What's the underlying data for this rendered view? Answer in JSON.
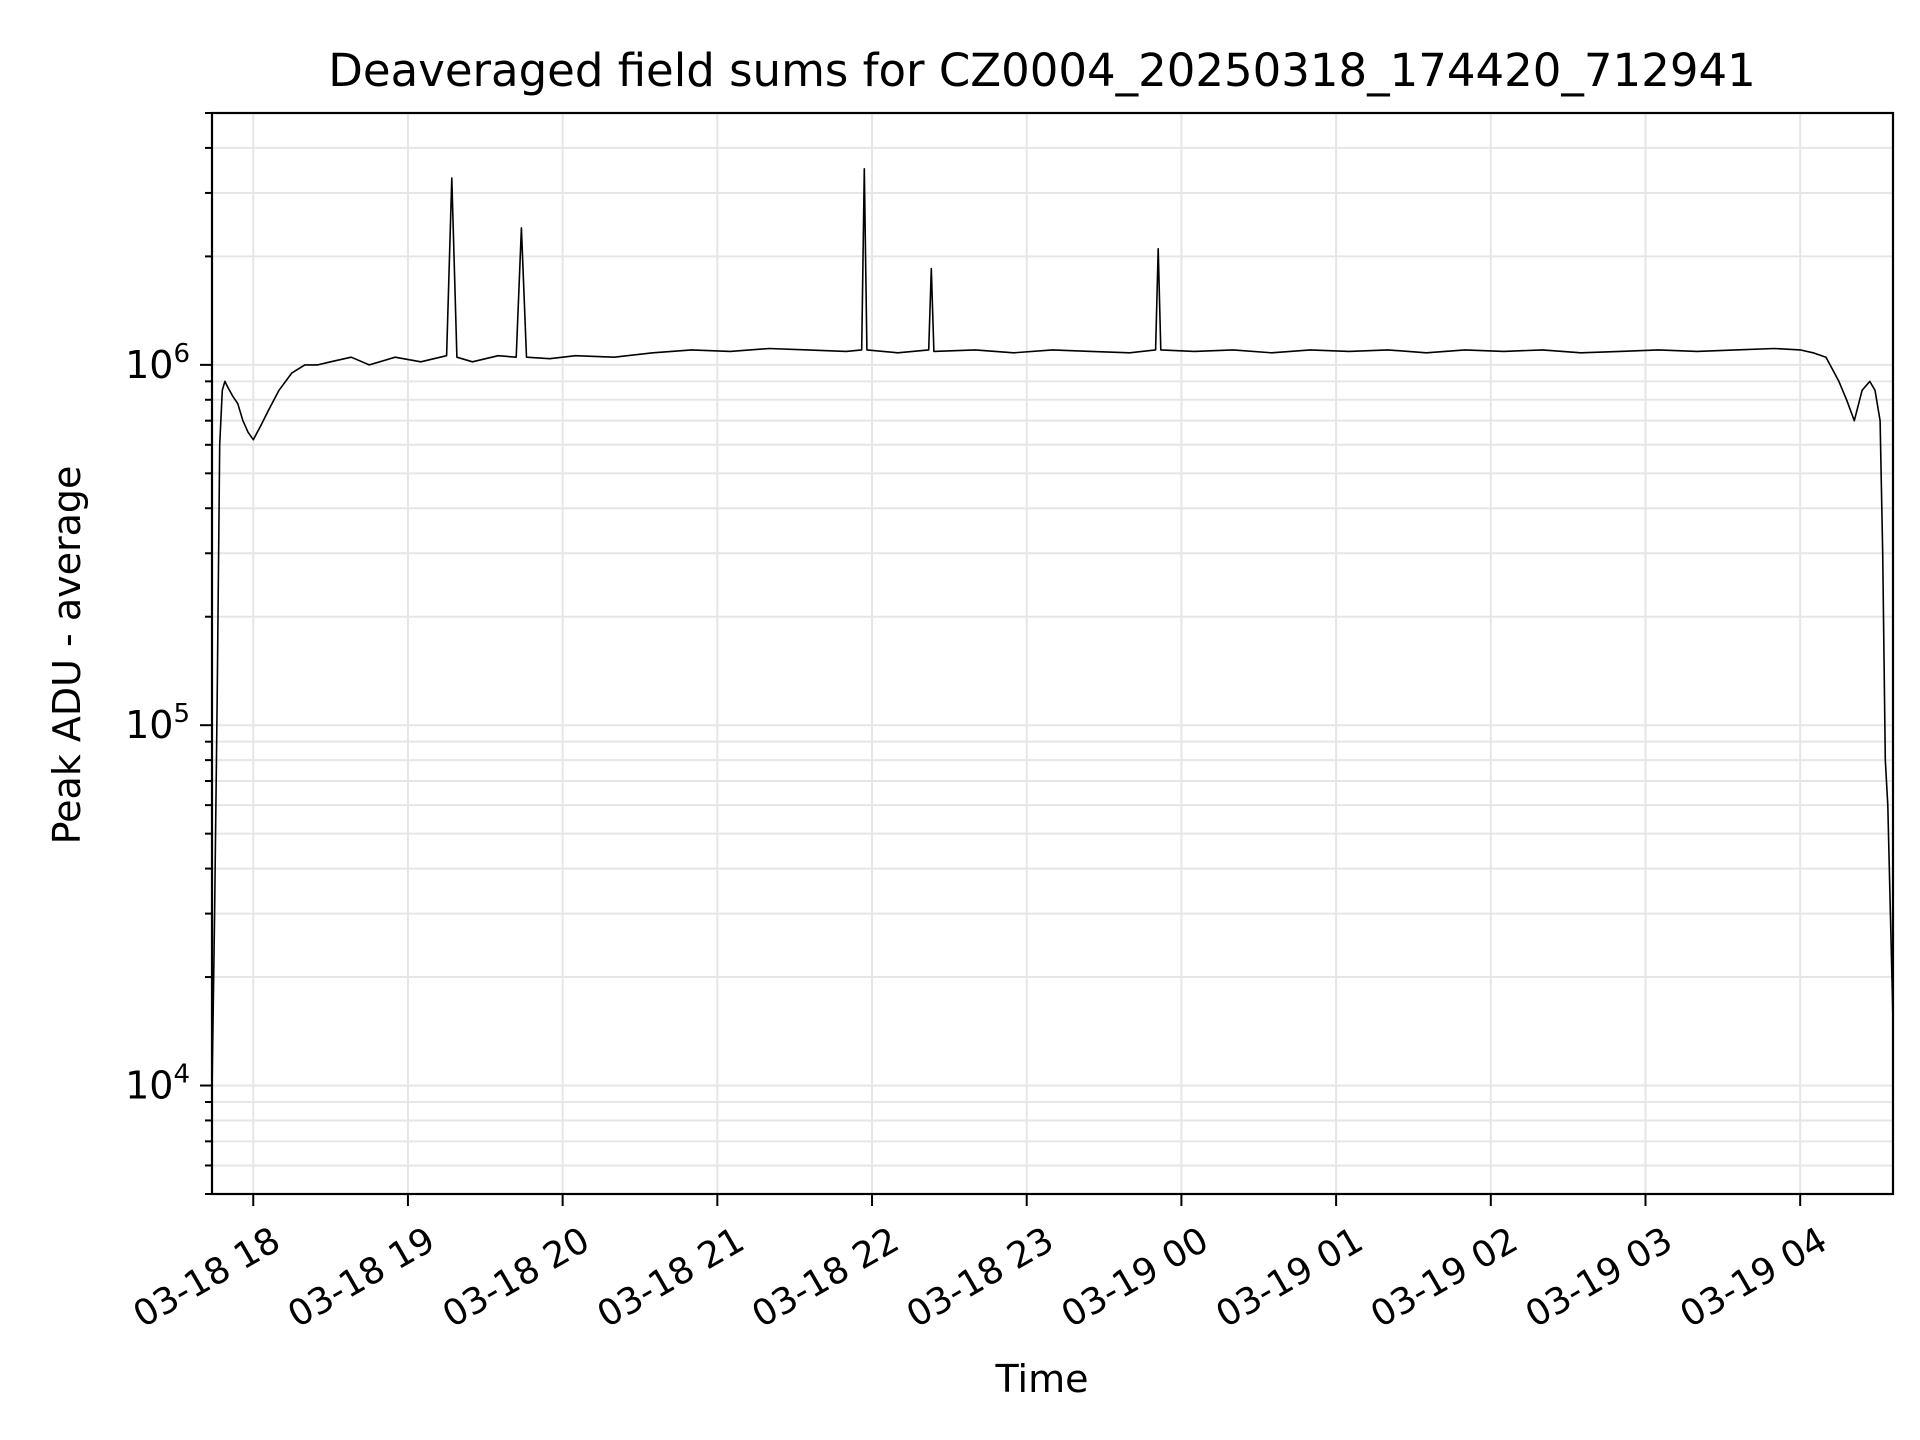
{
  "chart_data": {
    "type": "line",
    "title": "Deaveraged field sums for CZ0004_20250318_174420_712941",
    "xlabel": "Time",
    "ylabel": "Peak ADU - average",
    "x_range": [
      "03-18 17:44",
      "03-19 04:36"
    ],
    "yscale": "log",
    "ylim": [
      5000,
      5000000
    ],
    "grid": true,
    "line_color": "#000000",
    "grid_color": "#e6e6e6",
    "x_ticks": [
      {
        "time": "03-18 18:00",
        "label": "03-18 18"
      },
      {
        "time": "03-18 19:00",
        "label": "03-18 19"
      },
      {
        "time": "03-18 20:00",
        "label": "03-18 20"
      },
      {
        "time": "03-18 21:00",
        "label": "03-18 21"
      },
      {
        "time": "03-18 22:00",
        "label": "03-18 22"
      },
      {
        "time": "03-18 23:00",
        "label": "03-18 23"
      },
      {
        "time": "03-19 00:00",
        "label": "03-19 00"
      },
      {
        "time": "03-19 01:00",
        "label": "03-19 01"
      },
      {
        "time": "03-19 02:00",
        "label": "03-19 02"
      },
      {
        "time": "03-19 03:00",
        "label": "03-19 03"
      },
      {
        "time": "03-19 04:00",
        "label": "03-19 04"
      }
    ],
    "y_ticks": [
      {
        "value": 10000,
        "base": "10",
        "exp": "4"
      },
      {
        "value": 100000,
        "base": "10",
        "exp": "5"
      },
      {
        "value": 1000000,
        "base": "10",
        "exp": "6"
      }
    ],
    "series": [
      {
        "x": [
          "03-18 17:44",
          "03-18 17:45",
          "03-18 17:46",
          "03-18 17:47",
          "03-18 17:48",
          "03-18 17:49",
          "03-18 17:50",
          "03-18 17:52",
          "03-18 17:54",
          "03-18 17:56",
          "03-18 17:58",
          "03-18 18:00",
          "03-18 18:03",
          "03-18 18:06",
          "03-18 18:10",
          "03-18 18:15",
          "03-18 18:20",
          "03-18 18:25",
          "03-18 18:30",
          "03-18 18:38",
          "03-18 18:45",
          "03-18 18:55",
          "03-18 19:05",
          "03-18 19:15",
          "03-18 19:17",
          "03-18 19:19",
          "03-18 19:25",
          "03-18 19:35",
          "03-18 19:42",
          "03-18 19:44",
          "03-18 19:46",
          "03-18 19:55",
          "03-18 20:05",
          "03-18 20:20",
          "03-18 20:35",
          "03-18 20:50",
          "03-18 21:05",
          "03-18 21:20",
          "03-18 21:35",
          "03-18 21:50",
          "03-18 21:56",
          "03-18 21:57",
          "03-18 21:58",
          "03-18 22:10",
          "03-18 22:22",
          "03-18 22:23",
          "03-18 22:24",
          "03-18 22:40",
          "03-18 22:55",
          "03-18 23:10",
          "03-18 23:25",
          "03-18 23:40",
          "03-18 23:50",
          "03-18 23:51",
          "03-18 23:52",
          "03-19 00:05",
          "03-19 00:20",
          "03-19 00:35",
          "03-19 00:50",
          "03-19 01:05",
          "03-19 01:20",
          "03-19 01:35",
          "03-19 01:50",
          "03-19 02:05",
          "03-19 02:20",
          "03-19 02:35",
          "03-19 02:50",
          "03-19 03:05",
          "03-19 03:20",
          "03-19 03:35",
          "03-19 03:50",
          "03-19 04:00",
          "03-19 04:05",
          "03-19 04:10",
          "03-19 04:15",
          "03-19 04:18",
          "03-19 04:21",
          "03-19 04:24",
          "03-19 04:27",
          "03-19 04:29",
          "03-19 04:31",
          "03-19 04:32",
          "03-19 04:33",
          "03-19 04:34",
          "03-19 04:35",
          "03-19 04:36"
        ],
        "y": [
          9500,
          30000,
          120000,
          600000,
          850000,
          900000,
          870000,
          820000,
          780000,
          700000,
          650000,
          620000,
          680000,
          750000,
          850000,
          950000,
          1000000,
          1000000,
          1020000,
          1050000,
          1000000,
          1050000,
          1020000,
          1060000,
          3300000,
          1050000,
          1020000,
          1060000,
          1050000,
          2400000,
          1050000,
          1040000,
          1060000,
          1050000,
          1080000,
          1100000,
          1090000,
          1110000,
          1100000,
          1090000,
          1100000,
          3500000,
          1100000,
          1080000,
          1100000,
          1850000,
          1090000,
          1100000,
          1080000,
          1100000,
          1090000,
          1080000,
          1100000,
          2100000,
          1100000,
          1090000,
          1100000,
          1080000,
          1100000,
          1090000,
          1100000,
          1080000,
          1100000,
          1090000,
          1100000,
          1080000,
          1090000,
          1100000,
          1090000,
          1100000,
          1110000,
          1100000,
          1080000,
          1050000,
          900000,
          800000,
          700000,
          850000,
          900000,
          850000,
          700000,
          300000,
          80000,
          60000,
          30000,
          15000
        ]
      }
    ]
  }
}
